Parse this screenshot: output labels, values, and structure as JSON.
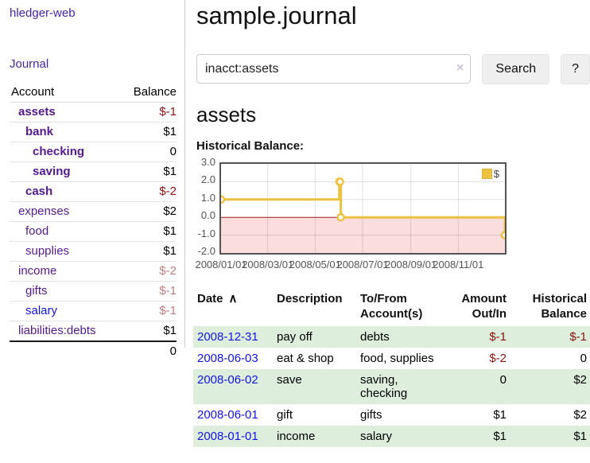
{
  "sidebar": {
    "app_title": "hledger-web",
    "nav": {
      "journal": "Journal"
    },
    "accounts": {
      "col_account": "Account",
      "col_balance": "Balance",
      "rows": [
        {
          "name": "assets",
          "depth": 1,
          "bold": true,
          "link": "visited",
          "balance": "$-1",
          "balance_class": "neg-strong"
        },
        {
          "name": "bank",
          "depth": 2,
          "bold": true,
          "link": "visited",
          "balance": "$1",
          "balance_class": ""
        },
        {
          "name": "checking",
          "depth": 3,
          "bold": true,
          "link": "visited",
          "balance": "0",
          "balance_class": ""
        },
        {
          "name": "saving",
          "depth": 3,
          "bold": true,
          "link": "visited",
          "balance": "$1",
          "balance_class": ""
        },
        {
          "name": "cash",
          "depth": 2,
          "bold": true,
          "link": "visited",
          "balance": "$-2",
          "balance_class": "neg-strong"
        },
        {
          "name": "expenses",
          "depth": 1,
          "bold": false,
          "link": "visited",
          "balance": "$2",
          "balance_class": ""
        },
        {
          "name": "food",
          "depth": 2,
          "bold": false,
          "link": "visited",
          "balance": "$1",
          "balance_class": ""
        },
        {
          "name": "supplies",
          "depth": 2,
          "bold": false,
          "link": "visited",
          "balance": "$1",
          "balance_class": ""
        },
        {
          "name": "income",
          "depth": 1,
          "bold": false,
          "link": "visited",
          "balance": "$-2",
          "balance_class": "neg-soft"
        },
        {
          "name": "gifts",
          "depth": 2,
          "bold": false,
          "link": "visited",
          "balance": "$-1",
          "balance_class": "neg-soft"
        },
        {
          "name": "salary",
          "depth": 2,
          "bold": false,
          "link": "unvisited",
          "balance": "$-1",
          "balance_class": "neg-soft"
        },
        {
          "name": "liabilities:debts",
          "depth": 1,
          "bold": false,
          "link": "visited",
          "balance": "$1",
          "balance_class": ""
        }
      ],
      "total": "0"
    }
  },
  "main": {
    "title": "sample.journal",
    "search": {
      "value": "inacct:assets",
      "clear_icon": "×",
      "button": "Search",
      "help_button": "?"
    },
    "account_heading": "assets",
    "chart_heading": "Historical Balance:"
  },
  "chart_data": {
    "type": "line",
    "step": true,
    "title": "Historical Balance:",
    "series": [
      {
        "name": "$",
        "color": "#EDC240",
        "points": [
          {
            "date": "2008-01-01",
            "value": 1
          },
          {
            "date": "2008-06-01",
            "value": 2
          },
          {
            "date": "2008-06-02",
            "value": 2
          },
          {
            "date": "2008-06-03",
            "value": 0
          },
          {
            "date": "2008-12-31",
            "value": -1
          }
        ]
      }
    ],
    "xlim": [
      "2008-01-01",
      "2008-12-31"
    ],
    "ylim": [
      -2,
      3
    ],
    "x_ticks": [
      {
        "label": "2008/01/01",
        "date": "2008-01-01"
      },
      {
        "label": "2008/03/01",
        "date": "2008-03-01"
      },
      {
        "label": "2008/05/01",
        "date": "2008-05-01"
      },
      {
        "label": "2008/07/01",
        "date": "2008-07-01"
      },
      {
        "label": "2008/09/01",
        "date": "2008-09-01"
      },
      {
        "label": "2008/11/01",
        "date": "2008-11-01"
      }
    ],
    "y_ticks": [
      {
        "label": "3.0",
        "value": 3
      },
      {
        "label": "2.0",
        "value": 2
      },
      {
        "label": "1.0",
        "value": 1
      },
      {
        "label": "0.0",
        "value": 0
      },
      {
        "label": "-1.0",
        "value": -1
      },
      {
        "label": "-2.0",
        "value": -2
      }
    ],
    "legend": {
      "position": "top-right",
      "label": "$"
    },
    "grid": true,
    "negative_fill": "#fbdddd",
    "zero_line_color": "#9b1c1c"
  },
  "register": {
    "columns": [
      {
        "id": "date",
        "line1": "Date",
        "line2": "",
        "align": "left",
        "sort_icon": "∧"
      },
      {
        "id": "description",
        "line1": "Description",
        "line2": "",
        "align": "left"
      },
      {
        "id": "accounts",
        "line1": "To/From",
        "line2": "Account(s)",
        "align": "left"
      },
      {
        "id": "amount",
        "line1": "Amount",
        "line2": "Out/In",
        "align": "right"
      },
      {
        "id": "balance",
        "line1": "Historical",
        "line2": "Balance",
        "align": "right"
      }
    ],
    "rows": [
      {
        "date": "2008-12-31",
        "description": "pay off",
        "accounts": "debts",
        "amount": "$-1",
        "amount_negative": true,
        "balance": "$-1",
        "balance_negative": true
      },
      {
        "date": "2008-06-03",
        "description": "eat & shop",
        "accounts": "food, supplies",
        "amount": "$-2",
        "amount_negative": true,
        "balance": "0",
        "balance_negative": false
      },
      {
        "date": "2008-06-02",
        "description": "save",
        "accounts": "saving, checking",
        "amount": "0",
        "amount_negative": false,
        "balance": "$2",
        "balance_negative": false
      },
      {
        "date": "2008-06-01",
        "description": "gift",
        "accounts": "gifts",
        "amount": "$1",
        "amount_negative": false,
        "balance": "$2",
        "balance_negative": false
      },
      {
        "date": "2008-01-01",
        "description": "income",
        "accounts": "salary",
        "amount": "$1",
        "amount_negative": false,
        "balance": "$1",
        "balance_negative": false
      }
    ]
  },
  "colors": {
    "link_visited": "#551a8b",
    "link_unvisited": "#1414dd",
    "nav_purple": "#4527a0",
    "negative_strong": "#8b1212",
    "negative_soft": "#bd7e7e",
    "row_stripe": "#ddeedd",
    "series_gold": "#EDC240"
  }
}
